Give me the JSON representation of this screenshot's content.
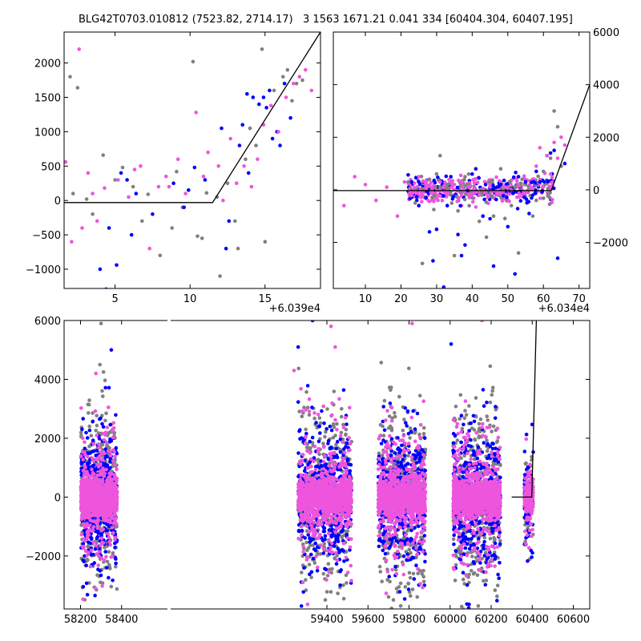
{
  "title": "BLG42T0703.010812 (7523.82, 2714.17)   3 1563 1671.21 0.041 334 [60404.304, 60407.195]",
  "colors": {
    "gray": "#808080",
    "blue": "#0000ff",
    "pink": "#ee55dd",
    "line": "#000000"
  },
  "chart_data": [
    {
      "type": "scatter",
      "name": "top-left-zoom",
      "x_offset_label": "+6.039e4",
      "xlim": [
        1.6,
        18.7
      ],
      "ylim": [
        -1280,
        2450
      ],
      "xticks": [
        5,
        10,
        15
      ],
      "xtick_labels": [
        "5",
        "10",
        "15"
      ],
      "yticks": [
        -1000,
        -500,
        0,
        500,
        1000,
        1500,
        2000
      ],
      "ytick_labels": [
        "−1000",
        "−500",
        "0",
        "500",
        "1000",
        "1500",
        "2000"
      ],
      "model_line": {
        "x": [
          1.6,
          11.5,
          18.7
        ],
        "y": [
          -30,
          -30,
          2450
        ]
      },
      "series": [
        {
          "color": "gray",
          "x": [
            2.0,
            2.5,
            3.1,
            4.2,
            5.5,
            6.8,
            7.2,
            8.0,
            9.1,
            10.2,
            10.5,
            11.1,
            12.5,
            13.2,
            14.0,
            14.8,
            15.6,
            16.2,
            17.1,
            17.5,
            3.5,
            5.0,
            8.8,
            12.0,
            13.7,
            15.0,
            16.8,
            2.2,
            6.2,
            9.5,
            11.8,
            14.4,
            16.5,
            10.8,
            13.0
          ],
          "y": [
            1800,
            1640,
            20,
            660,
            480,
            -300,
            90,
            -800,
            420,
            2020,
            -520,
            110,
            250,
            -700,
            1050,
            2200,
            1600,
            1800,
            1700,
            1750,
            -200,
            300,
            -400,
            -1100,
            600,
            -600,
            1450,
            100,
            200,
            -100,
            50,
            800,
            1900,
            -550,
            -300
          ]
        },
        {
          "color": "blue",
          "x": [
            4.0,
            4.4,
            5.1,
            5.8,
            6.4,
            7.5,
            8.9,
            9.6,
            10.3,
            11.0,
            12.1,
            12.6,
            13.3,
            13.8,
            14.2,
            14.6,
            15.1,
            15.5,
            15.8,
            16.3,
            16.7,
            4.6,
            5.4,
            6.1,
            9.9,
            12.4,
            13.5,
            14.9,
            15.3,
            16.0,
            13.9
          ],
          "y": [
            -1000,
            -1290,
            -940,
            300,
            100,
            -200,
            250,
            -100,
            480,
            300,
            1050,
            -300,
            800,
            1550,
            1500,
            1400,
            1350,
            900,
            1000,
            1700,
            1200,
            -400,
            400,
            -500,
            150,
            -700,
            1100,
            1500,
            1600,
            800,
            400
          ]
        },
        {
          "color": "pink",
          "x": [
            1.7,
            2.1,
            2.6,
            3.2,
            3.8,
            4.3,
            5.2,
            5.9,
            6.7,
            7.3,
            7.9,
            8.4,
            9.2,
            9.7,
            10.4,
            11.2,
            11.9,
            12.7,
            13.1,
            13.6,
            14.1,
            14.5,
            14.9,
            15.4,
            15.9,
            16.4,
            16.9,
            17.3,
            17.7,
            18.1,
            2.8,
            3.5,
            6.3,
            8.6,
            10.9,
            12.2
          ],
          "y": [
            560,
            -600,
            2200,
            400,
            -300,
            180,
            300,
            50,
            500,
            -700,
            200,
            350,
            600,
            100,
            1280,
            700,
            500,
            900,
            250,
            500,
            200,
            600,
            1100,
            1380,
            1000,
            1500,
            1700,
            1800,
            1900,
            1600,
            -400,
            100,
            450,
            200,
            350,
            0
          ]
        }
      ]
    },
    {
      "type": "scatter",
      "name": "top-right-zoom",
      "x_offset_label": "+6.034e4",
      "xlim": [
        1,
        73
      ],
      "ylim": [
        -3750,
        6000
      ],
      "xticks": [
        10,
        20,
        30,
        40,
        50,
        60,
        70
      ],
      "xtick_labels": [
        "10",
        "20",
        "30",
        "40",
        "50",
        "60",
        "70"
      ],
      "yticks": [
        -2000,
        0,
        2000,
        4000,
        6000
      ],
      "ytick_labels": [
        "−2000",
        "0",
        "2000",
        "4000",
        "6000"
      ],
      "model_line": {
        "x": [
          1,
          62.2,
          73
        ],
        "y": [
          -30,
          -30,
          4000
        ]
      },
      "series": [
        {
          "color": "gray",
          "x": [
            22,
            24,
            26,
            28,
            30,
            33,
            36,
            39,
            42,
            45,
            48,
            51,
            54,
            57,
            60,
            63,
            65,
            26,
            35,
            44,
            53,
            62,
            27,
            38,
            49,
            58,
            64,
            31,
            46,
            55
          ],
          "y": [
            300,
            -500,
            -2800,
            400,
            -1500,
            200,
            -800,
            600,
            -1200,
            300,
            800,
            -600,
            400,
            -1000,
            700,
            3000,
            900,
            0,
            -2500,
            -1800,
            -2400,
            1200,
            -300,
            500,
            100,
            -400,
            2400,
            1300,
            -1000,
            200
          ]
        },
        {
          "color": "blue",
          "x": [
            23,
            25,
            27,
            30,
            32,
            34,
            36,
            38,
            41,
            43,
            46,
            48,
            50,
            53,
            56,
            59,
            61,
            63,
            64,
            66,
            29,
            33,
            40,
            45,
            52,
            55,
            58,
            62,
            28,
            37,
            47,
            57
          ],
          "y": [
            300,
            -600,
            -300,
            -1500,
            -3700,
            500,
            -1700,
            -2100,
            800,
            -1000,
            -2900,
            200,
            -1400,
            500,
            -900,
            300,
            1300,
            1500,
            -2600,
            1000,
            -2700,
            -600,
            600,
            -1100,
            -3200,
            300,
            700,
            1400,
            -1600,
            -2500,
            100,
            -200
          ]
        },
        {
          "color": "pink",
          "x": [
            4,
            7,
            10,
            13,
            16,
            19,
            21,
            23,
            25,
            27,
            29,
            31,
            33,
            35,
            37,
            39,
            41,
            43,
            45,
            47,
            49,
            51,
            53,
            55,
            57,
            59,
            61,
            63,
            64,
            65,
            66,
            34,
            42,
            50,
            58,
            62
          ],
          "y": [
            -600,
            500,
            200,
            -400,
            100,
            -1000,
            300,
            -200,
            500,
            100,
            -100,
            300,
            -50,
            200,
            -200,
            100,
            -100,
            50,
            200,
            -150,
            100,
            0,
            150,
            -100,
            50,
            1600,
            1300,
            1800,
            1200,
            2000,
            1700,
            300,
            -200,
            100,
            900,
            600
          ]
        }
      ]
    },
    {
      "type": "scatter",
      "name": "bottom-overview",
      "xlim": [
        58120,
        60680
      ],
      "ylim": [
        -3800,
        6000
      ],
      "xticks": [
        58200,
        58400,
        59400,
        59600,
        59800,
        60000,
        60200,
        60400,
        60600
      ],
      "xtick_labels": [
        "58200",
        "58400",
        "59400",
        "59600",
        "59800",
        "60000",
        "60200",
        "60400",
        "60600"
      ],
      "yticks": [
        -2000,
        0,
        2000,
        4000,
        6000
      ],
      "ytick_labels": [
        "−2000",
        "0",
        "2000",
        "4000",
        "6000"
      ],
      "model_line": {
        "x": [
          60300,
          60398,
          60420
        ],
        "y": [
          0,
          0,
          6000
        ]
      },
      "seasons": [
        {
          "center": 58290,
          "halfwidth": 88
        },
        {
          "center": 59390,
          "halfwidth": 130
        },
        {
          "center": 59765,
          "halfwidth": 115
        },
        {
          "center": 60130,
          "halfwidth": 115
        },
        {
          "center": 60383,
          "halfwidth": 22
        }
      ],
      "outliers": [
        {
          "color": "pink",
          "x": 58275,
          "y": 4200
        },
        {
          "color": "gray",
          "x": 58300,
          "y": 5900
        },
        {
          "color": "blue",
          "x": 58350,
          "y": 5000
        },
        {
          "color": "pink",
          "x": 59240,
          "y": 4300
        },
        {
          "color": "blue",
          "x": 59260,
          "y": 5100
        },
        {
          "color": "blue",
          "x": 59330,
          "y": 6000
        },
        {
          "color": "pink",
          "x": 59420,
          "y": 5800
        },
        {
          "color": "pink",
          "x": 59440,
          "y": 5100
        },
        {
          "color": "pink",
          "x": 59815,
          "y": 5900
        },
        {
          "color": "pink",
          "x": 60155,
          "y": 6000
        },
        {
          "color": "blue",
          "x": 60005,
          "y": 5200
        }
      ]
    }
  ]
}
